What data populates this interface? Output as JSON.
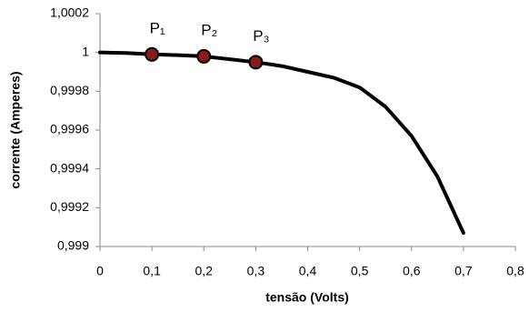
{
  "chart_data": {
    "type": "line",
    "x_label": "tensão (Volts)",
    "y_label": "corrente (Amperes)",
    "x": [
      0,
      0.05,
      0.1,
      0.15,
      0.2,
      0.25,
      0.3,
      0.35,
      0.4,
      0.45,
      0.5,
      0.55,
      0.6,
      0.65,
      0.7
    ],
    "series": [
      {
        "color": "#000000",
        "values": [
          1,
          0.999997,
          0.99999,
          0.999986,
          0.99998,
          0.999965,
          0.99995,
          0.99993,
          0.9999,
          0.99987,
          0.99982,
          0.99972,
          0.99957,
          0.99936,
          0.99907
        ]
      }
    ],
    "points": {
      "color": "#8b1a1a",
      "x": [
        0.1,
        0.2,
        0.3
      ],
      "values": [
        0.99999,
        0.99998,
        0.99995
      ],
      "labels": [
        "P₁",
        "P₂",
        "P₃"
      ]
    },
    "xlim": [
      0,
      0.8
    ],
    "xticks": [
      0,
      {
        "value": 0.1,
        "label": "0,1"
      },
      {
        "value": 0.2,
        "label": "0,2"
      },
      {
        "value": 0.3,
        "label": "0,3"
      },
      {
        "value": 0.4,
        "label": "0,4"
      },
      {
        "value": 0.5,
        "label": "0,5"
      },
      {
        "value": 0.6,
        "label": "0,6"
      },
      {
        "value": 0.7,
        "label": "0,7"
      },
      {
        "value": 0.8,
        "label": "0,8"
      }
    ],
    "ylim": [
      0.999,
      1.0002
    ],
    "yticks": [
      {
        "value": 0.999,
        "label": "0,999"
      },
      {
        "value": 0.9992,
        "label": "0,9992"
      },
      {
        "value": 0.9994,
        "label": "0,9994"
      },
      {
        "value": 0.9996,
        "label": "0,9996"
      },
      {
        "value": 0.9998,
        "label": "0,9998"
      },
      1,
      {
        "value": 1.0002,
        "label": "1,0002"
      }
    ],
    "grid": false
  }
}
